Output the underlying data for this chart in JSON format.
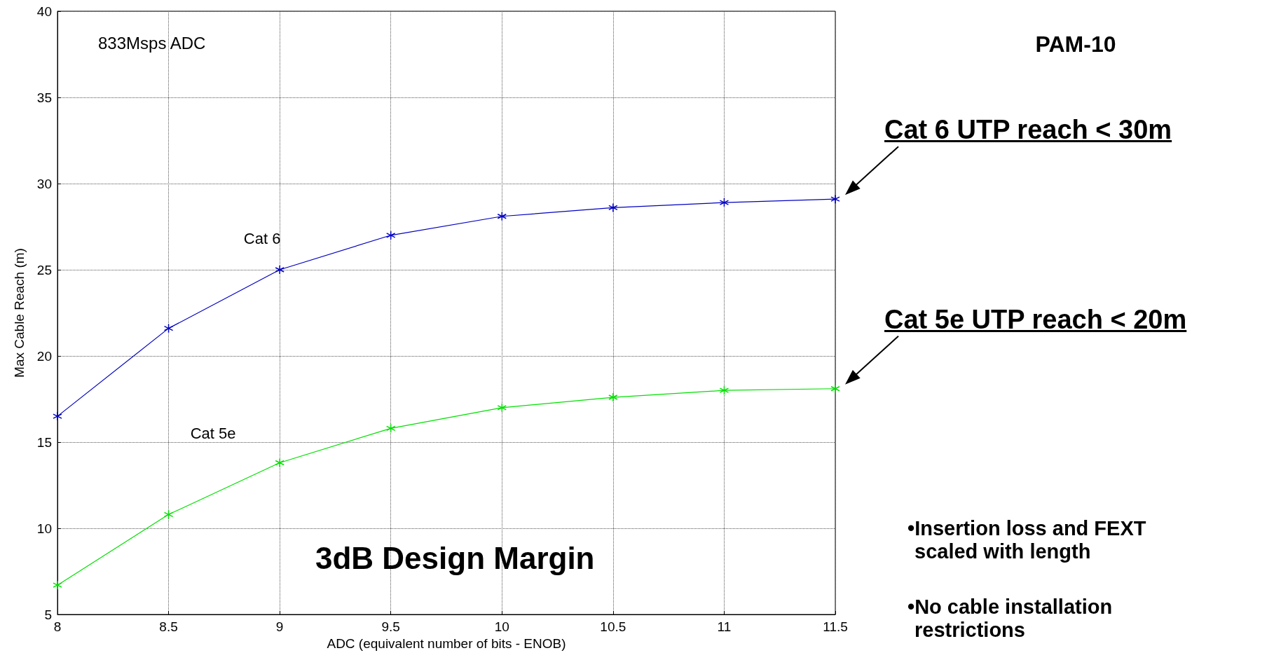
{
  "chart_data": {
    "type": "line",
    "xlabel": "ADC (equivalent number of bits - ENOB)",
    "ylabel": "Max Cable Reach (m)",
    "x": [
      8,
      8.5,
      9,
      9.5,
      10,
      10.5,
      11,
      11.5
    ],
    "series": [
      {
        "name": "Cat 6",
        "color": "#0000c0",
        "values": [
          16.5,
          21.6,
          25,
          27,
          28.1,
          28.6,
          28.9,
          29.1
        ]
      },
      {
        "name": "Cat 5e",
        "color": "#00e000",
        "values": [
          6.7,
          10.8,
          13.8,
          15.8,
          17.0,
          17.6,
          18.0,
          18.1
        ]
      }
    ],
    "xlim": [
      8,
      11.5
    ],
    "xticks": [
      8,
      8.5,
      9,
      9.5,
      10,
      10.5,
      11,
      11.5
    ],
    "ylim": [
      5,
      40
    ],
    "yticks": [
      5,
      10,
      15,
      20,
      25,
      30,
      35,
      40
    ],
    "grid": true,
    "marker": "star",
    "line_style": "solid",
    "legend": false,
    "annotations": [
      "833Msps ADC",
      "3dB Design Margin",
      "PAM-10",
      {
        "text": "Cat 6 UTP reach < 30m",
        "x": 11.5,
        "y": 29.1
      },
      {
        "text": "Cat 5e UTP reach < 20m",
        "x": 11.5,
        "y": 18.1
      },
      "•Insertion loss and FEXT scaled with length",
      "•No cable installation restrictions"
    ]
  }
}
